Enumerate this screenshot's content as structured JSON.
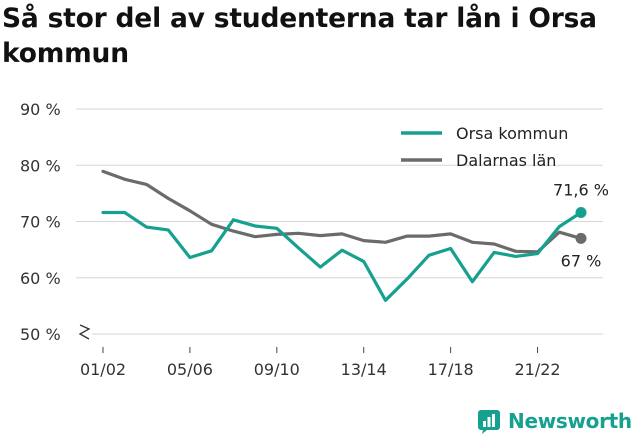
{
  "title": "Så stor del av studenterna tar lån i Orsa kommun",
  "brand": {
    "name": "Newsworthy",
    "icon": "newsworthy-logo-icon",
    "color": "#16a08f"
  },
  "chart_data": {
    "type": "line",
    "title": "Så stor del av studenterna tar lån i Orsa kommun",
    "xlabel": "",
    "ylabel": "",
    "x": [
      "01/02",
      "02/03",
      "03/04",
      "04/05",
      "05/06",
      "06/07",
      "07/08",
      "08/09",
      "09/10",
      "10/11",
      "11/12",
      "12/13",
      "13/14",
      "14/15",
      "15/16",
      "16/17",
      "17/18",
      "18/19",
      "19/20",
      "20/21",
      "21/22",
      "22/23",
      "23/24"
    ],
    "x_tick_labels": [
      "01/02",
      "05/06",
      "09/10",
      "13/14",
      "17/18",
      "21/22"
    ],
    "y_tick_labels": [
      "50 %",
      "60 %",
      "70 %",
      "80 %",
      "90 %"
    ],
    "ylim": [
      50,
      90
    ],
    "y_break": true,
    "grid": "horizontal",
    "legend_position": "top-right",
    "series": [
      {
        "name": "Orsa kommun",
        "color": "#16a08f",
        "values": [
          71.6,
          71.6,
          69.0,
          68.5,
          63.6,
          64.8,
          70.3,
          69.2,
          68.8,
          65.3,
          61.9,
          64.9,
          62.9,
          56.0,
          59.8,
          64.0,
          65.2,
          59.3,
          64.5,
          63.8,
          64.3,
          69.1,
          71.6
        ],
        "end_label": "71,6 %"
      },
      {
        "name": "Dalarnas län",
        "color": "#6b6b6b",
        "values": [
          78.9,
          77.5,
          76.6,
          74.1,
          71.9,
          69.5,
          68.3,
          67.3,
          67.7,
          67.9,
          67.5,
          67.8,
          66.6,
          66.3,
          67.4,
          67.4,
          67.8,
          66.3,
          66.0,
          64.7,
          64.6,
          68.1,
          67.0
        ],
        "end_label": "67 %"
      }
    ]
  }
}
